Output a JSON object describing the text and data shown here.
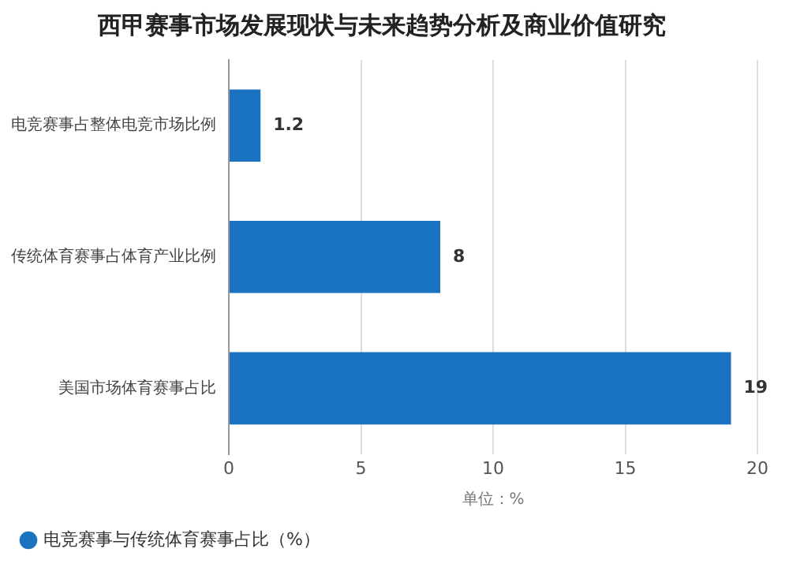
{
  "chart_data": {
    "type": "bar",
    "orientation": "horizontal",
    "title": "西甲赛事市场发展现状与未来趋势分析及商业价值研究",
    "categories": [
      "电竞赛事占整体电竞市场比例",
      "传统体育赛事占体育产业比例",
      "美国市场体育赛事占比"
    ],
    "series": [
      {
        "name": "电竞赛事与传统体育赛事占比（%）",
        "color": "#1a73c0",
        "values": [
          1.2,
          8,
          19
        ]
      }
    ],
    "xlim": [
      0,
      20
    ],
    "xticks": [
      0,
      5,
      10,
      15,
      20
    ],
    "xlabel": "单位：%",
    "grid": "x",
    "legend": "bottom",
    "data_labels": true
  }
}
